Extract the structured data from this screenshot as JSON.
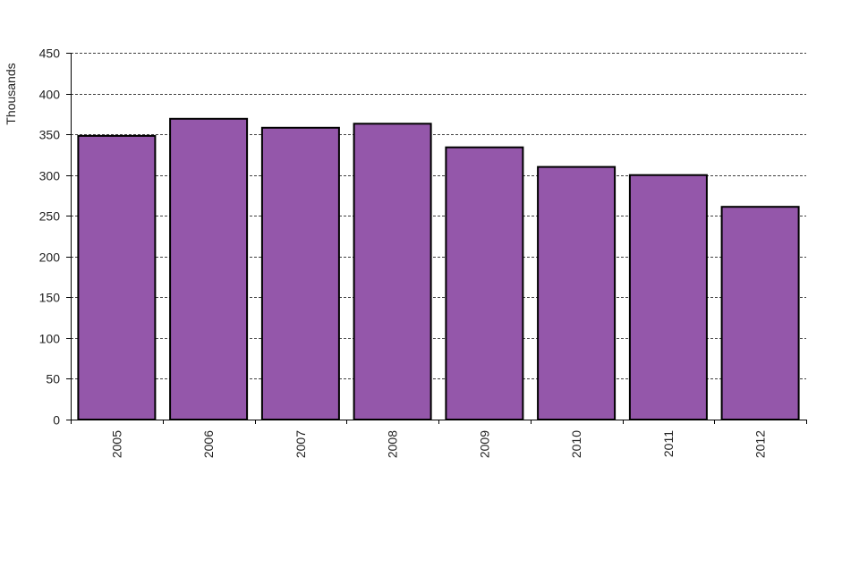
{
  "chart_data": {
    "type": "bar",
    "title": "",
    "xlabel": "",
    "ylabel": "Thousands",
    "categories": [
      "2005",
      "2006",
      "2007",
      "2008",
      "2009",
      "2010",
      "2011",
      "2012"
    ],
    "values": [
      348,
      369,
      358,
      363,
      334,
      310,
      300,
      261
    ],
    "ylim": [
      0,
      450
    ],
    "yticks": [
      0,
      50,
      100,
      150,
      200,
      250,
      300,
      350,
      400,
      450
    ],
    "grid": true,
    "legend": "none",
    "colors": {
      "bar_fill": "#9457aa",
      "bar_stroke": "#000000",
      "grid": "#000000",
      "axis": "#000000"
    }
  }
}
